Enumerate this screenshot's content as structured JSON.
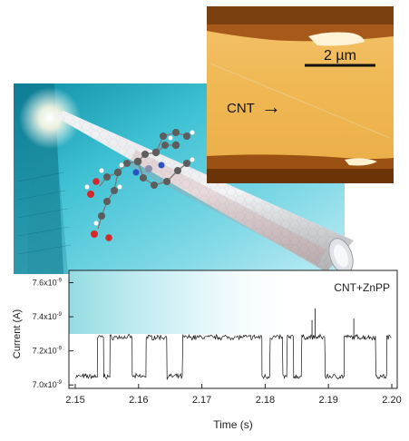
{
  "afm": {
    "scale_label": "2 µm",
    "cnt_label": "CNT",
    "cnt_arrow": "→"
  },
  "chart_data": {
    "type": "line",
    "legend": "CNT+ZnPP",
    "xlabel": "Time (s)",
    "ylabel": "Current (A)",
    "xlim": [
      2.15,
      2.2
    ],
    "ylim": [
      6.98e-09,
      7.64e-09
    ],
    "x_ticks": [
      "2.15",
      "2.16",
      "2.17",
      "2.18",
      "2.19",
      "2.20"
    ],
    "y_ticks": [
      {
        "value": 7e-09,
        "mantissa": "7.0x10",
        "exp": "-9"
      },
      {
        "value": 7.2e-09,
        "mantissa": "7.2x10",
        "exp": "-9"
      },
      {
        "value": 7.4e-09,
        "mantissa": "7.4x10",
        "exp": "-9"
      },
      {
        "value": 7.6e-09,
        "mantissa": "7.6x10",
        "exp": "-9"
      }
    ],
    "levels": {
      "low": 7.05e-09,
      "high": 7.28e-09
    },
    "segments": [
      {
        "x0": 2.15,
        "x1": 2.1535,
        "level": "low"
      },
      {
        "x0": 2.1535,
        "x1": 2.1545,
        "level": "high"
      },
      {
        "x0": 2.1545,
        "x1": 2.1555,
        "level": "low"
      },
      {
        "x0": 2.1555,
        "x1": 2.159,
        "level": "high"
      },
      {
        "x0": 2.159,
        "x1": 2.1612,
        "level": "low"
      },
      {
        "x0": 2.1612,
        "x1": 2.1645,
        "level": "high"
      },
      {
        "x0": 2.1645,
        "x1": 2.167,
        "level": "low"
      },
      {
        "x0": 2.167,
        "x1": 2.1795,
        "level": "high"
      },
      {
        "x0": 2.1795,
        "x1": 2.1808,
        "level": "low"
      },
      {
        "x0": 2.1808,
        "x1": 2.1828,
        "level": "high"
      },
      {
        "x0": 2.1828,
        "x1": 2.1835,
        "level": "low"
      },
      {
        "x0": 2.1835,
        "x1": 2.1845,
        "level": "high"
      },
      {
        "x0": 2.1845,
        "x1": 2.1858,
        "level": "low"
      },
      {
        "x0": 2.1858,
        "x1": 2.1895,
        "level": "high"
      },
      {
        "x0": 2.1895,
        "x1": 2.1925,
        "level": "low"
      },
      {
        "x0": 2.1925,
        "x1": 2.1975,
        "level": "high"
      },
      {
        "x0": 2.1975,
        "x1": 2.1992,
        "level": "low"
      },
      {
        "x0": 2.1992,
        "x1": 2.2,
        "level": "high"
      }
    ],
    "spikes": [
      {
        "x": 2.1874,
        "value": 7.38e-09
      },
      {
        "x": 2.1879,
        "value": 7.45e-09
      },
      {
        "x": 2.194,
        "value": 7.39e-09
      }
    ]
  }
}
